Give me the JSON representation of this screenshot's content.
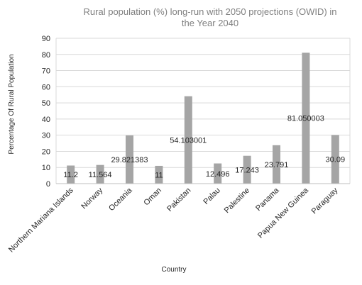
{
  "chart_data": {
    "type": "bar",
    "title": "Rural population (%) long-run with 2050 projections (OWID) in the Year 2040",
    "title_lines": [
      "Rural population (%) long-run with 2050 projections (OWID) in",
      "the Year 2040"
    ],
    "xlabel": "Country",
    "ylabel": "Percentage Of Rural Population",
    "categories": [
      "Northern Mariana Islands",
      "Norway",
      "Oceania",
      "Oman",
      "Pakistan",
      "Palau",
      "Palestine",
      "Panama",
      "Papua New Guinea",
      "Paraguay"
    ],
    "values": [
      11.2,
      11.564,
      29.821383,
      11,
      54.103001,
      12.496,
      17.243,
      23.791,
      81.050003,
      30.09
    ],
    "data_labels": [
      "11.2",
      "11.564",
      "29.821383",
      "11",
      "54.103001",
      "12.496",
      "17.243",
      "23.791",
      "81.050003",
      "30.09"
    ],
    "ylim": [
      0,
      90
    ],
    "yticks": [
      0,
      10,
      20,
      30,
      40,
      50,
      60,
      70,
      80,
      90
    ],
    "grid": true,
    "bar_color": "#a5a5a5",
    "grid_color": "#d9d9d9",
    "legend": "none"
  }
}
